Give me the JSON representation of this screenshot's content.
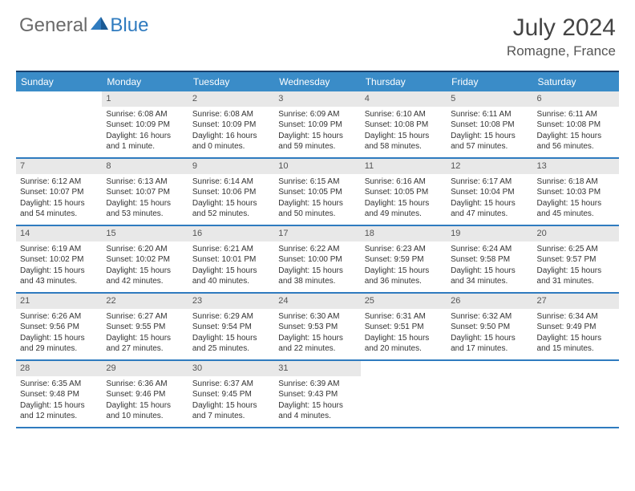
{
  "brand": {
    "part1": "General",
    "part2": "Blue"
  },
  "title": "July 2024",
  "location": "Romagne, France",
  "colors": {
    "header_bg": "#3a8cc8",
    "header_text": "#ffffff",
    "row_border": "#2f7bbf",
    "top_border": "#1a3f6b",
    "daynum_bg": "#e8e8e8",
    "text": "#333333",
    "brand_gray": "#6a6a6a",
    "brand_blue": "#2f7bbf"
  },
  "weekdays": [
    "Sunday",
    "Monday",
    "Tuesday",
    "Wednesday",
    "Thursday",
    "Friday",
    "Saturday"
  ],
  "weeks": [
    [
      {
        "n": "",
        "sr": "",
        "ss": "",
        "dl": ""
      },
      {
        "n": "1",
        "sr": "Sunrise: 6:08 AM",
        "ss": "Sunset: 10:09 PM",
        "dl": "Daylight: 16 hours and 1 minute."
      },
      {
        "n": "2",
        "sr": "Sunrise: 6:08 AM",
        "ss": "Sunset: 10:09 PM",
        "dl": "Daylight: 16 hours and 0 minutes."
      },
      {
        "n": "3",
        "sr": "Sunrise: 6:09 AM",
        "ss": "Sunset: 10:09 PM",
        "dl": "Daylight: 15 hours and 59 minutes."
      },
      {
        "n": "4",
        "sr": "Sunrise: 6:10 AM",
        "ss": "Sunset: 10:08 PM",
        "dl": "Daylight: 15 hours and 58 minutes."
      },
      {
        "n": "5",
        "sr": "Sunrise: 6:11 AM",
        "ss": "Sunset: 10:08 PM",
        "dl": "Daylight: 15 hours and 57 minutes."
      },
      {
        "n": "6",
        "sr": "Sunrise: 6:11 AM",
        "ss": "Sunset: 10:08 PM",
        "dl": "Daylight: 15 hours and 56 minutes."
      }
    ],
    [
      {
        "n": "7",
        "sr": "Sunrise: 6:12 AM",
        "ss": "Sunset: 10:07 PM",
        "dl": "Daylight: 15 hours and 54 minutes."
      },
      {
        "n": "8",
        "sr": "Sunrise: 6:13 AM",
        "ss": "Sunset: 10:07 PM",
        "dl": "Daylight: 15 hours and 53 minutes."
      },
      {
        "n": "9",
        "sr": "Sunrise: 6:14 AM",
        "ss": "Sunset: 10:06 PM",
        "dl": "Daylight: 15 hours and 52 minutes."
      },
      {
        "n": "10",
        "sr": "Sunrise: 6:15 AM",
        "ss": "Sunset: 10:05 PM",
        "dl": "Daylight: 15 hours and 50 minutes."
      },
      {
        "n": "11",
        "sr": "Sunrise: 6:16 AM",
        "ss": "Sunset: 10:05 PM",
        "dl": "Daylight: 15 hours and 49 minutes."
      },
      {
        "n": "12",
        "sr": "Sunrise: 6:17 AM",
        "ss": "Sunset: 10:04 PM",
        "dl": "Daylight: 15 hours and 47 minutes."
      },
      {
        "n": "13",
        "sr": "Sunrise: 6:18 AM",
        "ss": "Sunset: 10:03 PM",
        "dl": "Daylight: 15 hours and 45 minutes."
      }
    ],
    [
      {
        "n": "14",
        "sr": "Sunrise: 6:19 AM",
        "ss": "Sunset: 10:02 PM",
        "dl": "Daylight: 15 hours and 43 minutes."
      },
      {
        "n": "15",
        "sr": "Sunrise: 6:20 AM",
        "ss": "Sunset: 10:02 PM",
        "dl": "Daylight: 15 hours and 42 minutes."
      },
      {
        "n": "16",
        "sr": "Sunrise: 6:21 AM",
        "ss": "Sunset: 10:01 PM",
        "dl": "Daylight: 15 hours and 40 minutes."
      },
      {
        "n": "17",
        "sr": "Sunrise: 6:22 AM",
        "ss": "Sunset: 10:00 PM",
        "dl": "Daylight: 15 hours and 38 minutes."
      },
      {
        "n": "18",
        "sr": "Sunrise: 6:23 AM",
        "ss": "Sunset: 9:59 PM",
        "dl": "Daylight: 15 hours and 36 minutes."
      },
      {
        "n": "19",
        "sr": "Sunrise: 6:24 AM",
        "ss": "Sunset: 9:58 PM",
        "dl": "Daylight: 15 hours and 34 minutes."
      },
      {
        "n": "20",
        "sr": "Sunrise: 6:25 AM",
        "ss": "Sunset: 9:57 PM",
        "dl": "Daylight: 15 hours and 31 minutes."
      }
    ],
    [
      {
        "n": "21",
        "sr": "Sunrise: 6:26 AM",
        "ss": "Sunset: 9:56 PM",
        "dl": "Daylight: 15 hours and 29 minutes."
      },
      {
        "n": "22",
        "sr": "Sunrise: 6:27 AM",
        "ss": "Sunset: 9:55 PM",
        "dl": "Daylight: 15 hours and 27 minutes."
      },
      {
        "n": "23",
        "sr": "Sunrise: 6:29 AM",
        "ss": "Sunset: 9:54 PM",
        "dl": "Daylight: 15 hours and 25 minutes."
      },
      {
        "n": "24",
        "sr": "Sunrise: 6:30 AM",
        "ss": "Sunset: 9:53 PM",
        "dl": "Daylight: 15 hours and 22 minutes."
      },
      {
        "n": "25",
        "sr": "Sunrise: 6:31 AM",
        "ss": "Sunset: 9:51 PM",
        "dl": "Daylight: 15 hours and 20 minutes."
      },
      {
        "n": "26",
        "sr": "Sunrise: 6:32 AM",
        "ss": "Sunset: 9:50 PM",
        "dl": "Daylight: 15 hours and 17 minutes."
      },
      {
        "n": "27",
        "sr": "Sunrise: 6:34 AM",
        "ss": "Sunset: 9:49 PM",
        "dl": "Daylight: 15 hours and 15 minutes."
      }
    ],
    [
      {
        "n": "28",
        "sr": "Sunrise: 6:35 AM",
        "ss": "Sunset: 9:48 PM",
        "dl": "Daylight: 15 hours and 12 minutes."
      },
      {
        "n": "29",
        "sr": "Sunrise: 6:36 AM",
        "ss": "Sunset: 9:46 PM",
        "dl": "Daylight: 15 hours and 10 minutes."
      },
      {
        "n": "30",
        "sr": "Sunrise: 6:37 AM",
        "ss": "Sunset: 9:45 PM",
        "dl": "Daylight: 15 hours and 7 minutes."
      },
      {
        "n": "31",
        "sr": "Sunrise: 6:39 AM",
        "ss": "Sunset: 9:43 PM",
        "dl": "Daylight: 15 hours and 4 minutes."
      },
      {
        "n": "",
        "sr": "",
        "ss": "",
        "dl": ""
      },
      {
        "n": "",
        "sr": "",
        "ss": "",
        "dl": ""
      },
      {
        "n": "",
        "sr": "",
        "ss": "",
        "dl": ""
      }
    ]
  ]
}
